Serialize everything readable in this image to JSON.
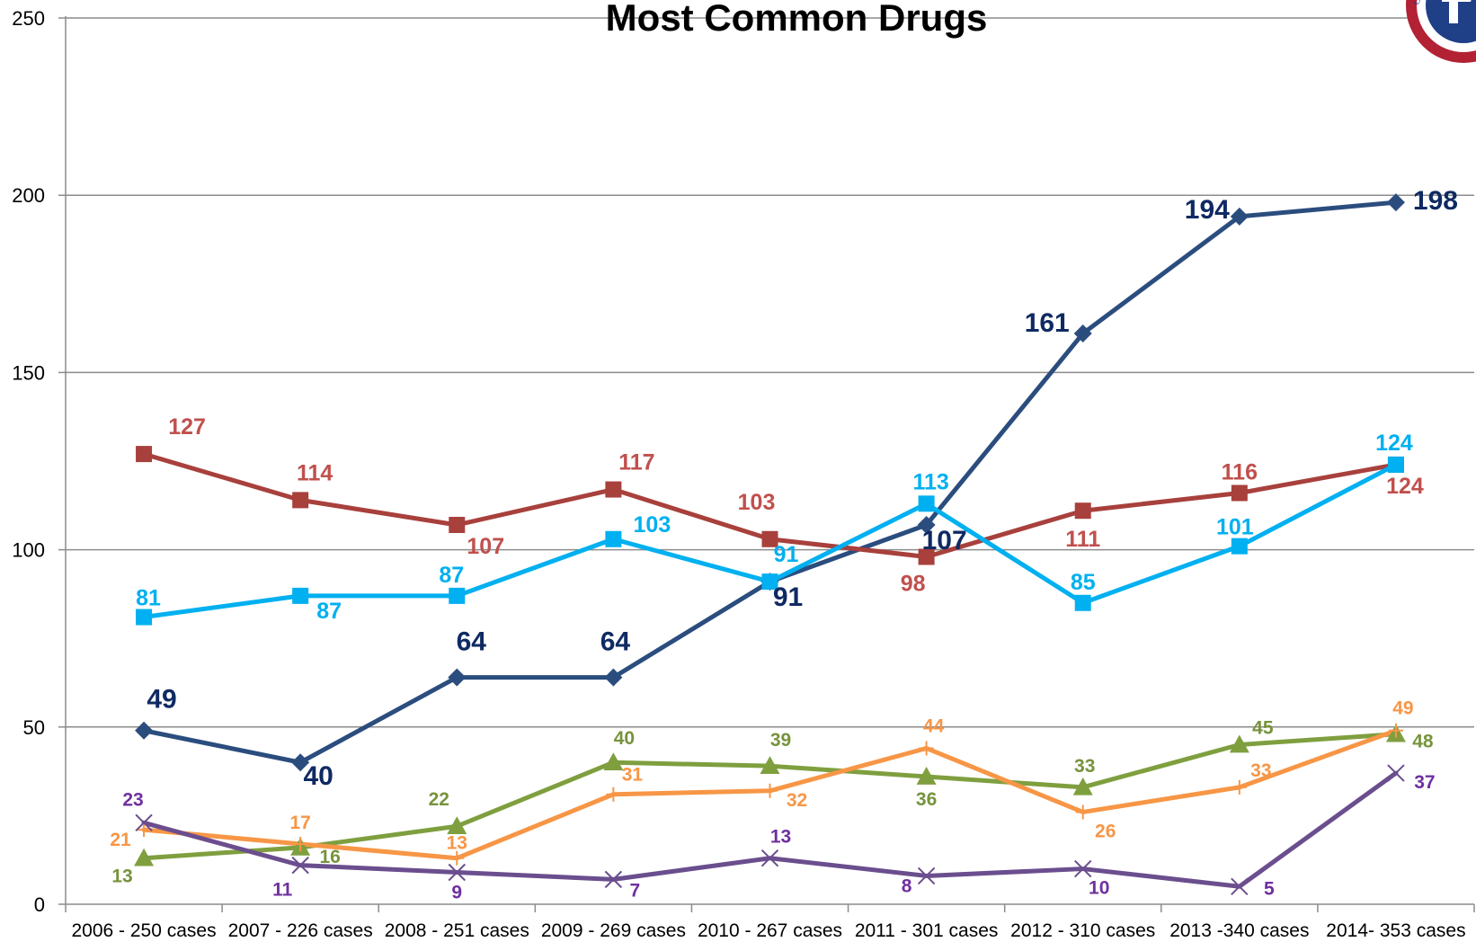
{
  "chart_data": {
    "type": "line",
    "title": "Most Common Drugs",
    "xlabel": "",
    "ylabel": "",
    "ylim": [
      0,
      250
    ],
    "yticks": [
      "0",
      "50",
      "100",
      "150",
      "200",
      "250"
    ],
    "grid": true,
    "categories": [
      "2006 - 250 cases",
      "2007 - 226 cases",
      "2008 - 251 cases",
      "2009 - 269 cases",
      "2010 - 267 cases",
      "2011 - 301 cases",
      "2012 - 310 cases",
      "2013 -340 cases",
      "2014- 353 cases"
    ],
    "series": [
      {
        "color": "#2B4D7E",
        "label_color": "#0F2A63",
        "marker": "diamond",
        "values": [
          49,
          40,
          64,
          64,
          91,
          107,
          161,
          194,
          198
        ]
      },
      {
        "color": "#A8403C",
        "label_color": "#C0504D",
        "marker": "square",
        "values": [
          127,
          114,
          107,
          117,
          103,
          98,
          111,
          116,
          124
        ]
      },
      {
        "color": "#00B0F0",
        "label_color": "#00B0F0",
        "marker": "square",
        "values": [
          81,
          87,
          87,
          103,
          91,
          113,
          85,
          101,
          124
        ]
      },
      {
        "color": "#7F9F3F",
        "label_color": "#77933C",
        "marker": "triangle",
        "values": [
          13,
          16,
          22,
          40,
          39,
          36,
          33,
          45,
          48
        ]
      },
      {
        "color": "#F79646",
        "label_color": "#F79646",
        "marker": "plus",
        "values": [
          21,
          17,
          13,
          31,
          32,
          44,
          26,
          33,
          49
        ]
      },
      {
        "color": "#6B4E8E",
        "label_color": "#7030A0",
        "marker": "x",
        "values": [
          23,
          11,
          9,
          7,
          13,
          8,
          10,
          5,
          37
        ]
      }
    ]
  }
}
